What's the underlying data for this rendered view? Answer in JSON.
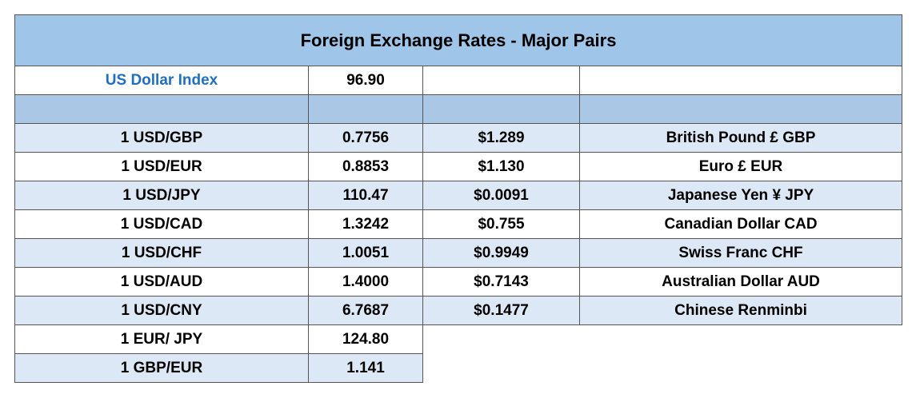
{
  "header": {
    "title": "Foreign Exchange Rates - Major Pairs"
  },
  "index": {
    "label": "US Dollar Index",
    "value": "96.90"
  },
  "table": {
    "rows": [
      [
        "1 USD/GBP",
        "0.7756",
        "$1.289",
        "British Pound £ GBP"
      ],
      [
        "1 USD/EUR",
        "0.8853",
        "$1.130",
        "Euro £ EUR"
      ],
      [
        "1 USD/JPY",
        "110.47",
        "$0.0091",
        "Japanese Yen ¥ JPY"
      ],
      [
        "1 USD/CAD",
        "1.3242",
        "$0.755",
        "Canadian Dollar CAD"
      ],
      [
        "1 USD/CHF",
        "1.0051",
        "$0.9949",
        "Swiss Franc CHF"
      ],
      [
        "1 USD/AUD",
        "1.4000",
        "$0.7143",
        "Australian Dollar AUD"
      ],
      [
        "1 USD/CNY",
        "6.7687",
        "$0.1477",
        "Chinese Renminbi"
      ],
      [
        "1 EUR/ JPY",
        "124.80"
      ],
      [
        "1 GBP/EUR",
        "1.141"
      ]
    ]
  }
}
